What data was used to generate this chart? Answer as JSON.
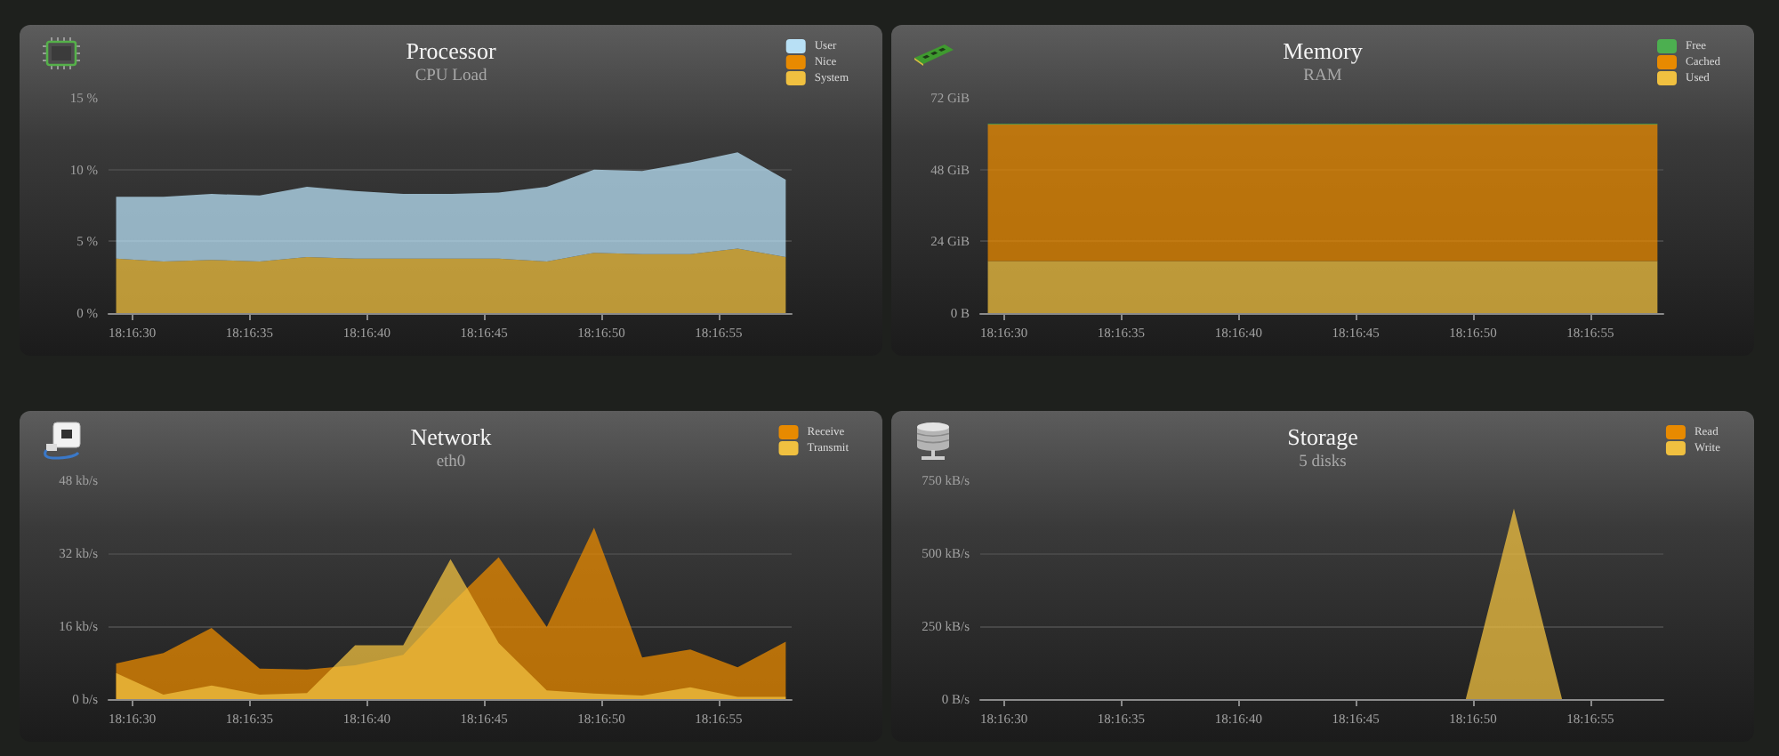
{
  "chart_data": [
    {
      "type": "area",
      "title": "Processor",
      "subtitle": "CPU Load",
      "x": [
        18.27481,
        18.27537,
        18.27594,
        18.27651,
        18.27707,
        18.27764,
        18.27821,
        18.27877,
        18.27934,
        18.27991,
        18.28047,
        18.28104,
        18.28161,
        18.28217,
        18.28274
      ],
      "xlim": [
        18.27472,
        18.28281
      ],
      "xticks": [
        {
          "value": 18.275,
          "label": "18:16:30"
        },
        {
          "value": 18.276389,
          "label": "18:16:35"
        },
        {
          "value": 18.277778,
          "label": "18:16:40"
        },
        {
          "value": 18.279167,
          "label": "18:16:45"
        },
        {
          "value": 18.280556,
          "label": "18:16:50"
        },
        {
          "value": 18.281944,
          "label": "18:16:55"
        }
      ],
      "ylim": [
        0,
        15
      ],
      "yticks": [
        {
          "value": 0,
          "label": "0 %"
        },
        {
          "value": 5,
          "label": "5 %"
        },
        {
          "value": 10,
          "label": "10 %"
        },
        {
          "value": 15,
          "label": "15 %"
        }
      ],
      "stacked": true,
      "grid": "y",
      "legend": "top right",
      "series": [
        {
          "name": "System",
          "color": "#f0c040",
          "values": [
            3.8,
            3.6,
            3.7,
            3.6,
            3.9,
            3.8,
            3.8,
            3.8,
            3.8,
            3.6,
            4.2,
            4.1,
            4.1,
            4.5,
            3.9
          ]
        },
        {
          "name": "Nice",
          "color": "#e88a00",
          "values": [
            null,
            null,
            null,
            null,
            null,
            null,
            null,
            null,
            null,
            null,
            null,
            null,
            null,
            null,
            null
          ]
        },
        {
          "name": "User",
          "color": "#b8e0f5",
          "values": [
            4.3,
            4.5,
            4.6,
            4.6,
            4.9,
            4.7,
            4.5,
            4.5,
            4.6,
            5.2,
            5.8,
            5.8,
            6.4,
            6.7,
            5.4
          ]
        }
      ]
    },
    {
      "type": "area",
      "title": "Memory",
      "subtitle": "RAM",
      "x": [
        18.27481,
        18.27537,
        18.27594,
        18.27651,
        18.27707,
        18.27764,
        18.27821,
        18.27877,
        18.27934,
        18.27991,
        18.28047,
        18.28104,
        18.28161,
        18.28217,
        18.28274
      ],
      "xlim": [
        18.27472,
        18.28281
      ],
      "xticks": [
        {
          "value": 18.275,
          "label": "18:16:30"
        },
        {
          "value": 18.276389,
          "label": "18:16:35"
        },
        {
          "value": 18.277778,
          "label": "18:16:40"
        },
        {
          "value": 18.279167,
          "label": "18:16:45"
        },
        {
          "value": 18.280556,
          "label": "18:16:50"
        },
        {
          "value": 18.281944,
          "label": "18:16:55"
        }
      ],
      "ylim": [
        0,
        72
      ],
      "yticks": [
        {
          "value": 0,
          "label": "0 B"
        },
        {
          "value": 24,
          "label": "24 GiB"
        },
        {
          "value": 48,
          "label": "48 GiB"
        },
        {
          "value": 72,
          "label": "72 GiB"
        }
      ],
      "stacked": true,
      "grid": "y",
      "legend": "top right",
      "series": [
        {
          "name": "Used",
          "color": "#f0c040",
          "values": [
            17.4,
            17.4,
            17.4,
            17.4,
            17.4,
            17.4,
            17.4,
            17.4,
            17.4,
            17.4,
            17.4,
            17.4,
            17.4,
            17.4,
            17.4
          ]
        },
        {
          "name": "Cached",
          "color": "#e88a00",
          "values": [
            45.7,
            45.7,
            45.7,
            45.7,
            45.7,
            45.7,
            45.7,
            45.7,
            45.7,
            45.7,
            45.7,
            45.7,
            45.7,
            45.7,
            45.7
          ]
        },
        {
          "name": "Free",
          "color": "#4caf50",
          "values": [
            0.3,
            0.3,
            0.3,
            0.3,
            0.3,
            0.3,
            0.3,
            0.3,
            0.3,
            0.3,
            0.3,
            0.3,
            0.3,
            0.3,
            0.3
          ]
        }
      ]
    },
    {
      "type": "area",
      "title": "Network",
      "subtitle": "eth0",
      "x": [
        18.27481,
        18.27537,
        18.27594,
        18.27651,
        18.27707,
        18.27764,
        18.27821,
        18.27877,
        18.27934,
        18.27991,
        18.28047,
        18.28104,
        18.28161,
        18.28217,
        18.28274
      ],
      "xlim": [
        18.27472,
        18.28281
      ],
      "xticks": [
        {
          "value": 18.275,
          "label": "18:16:30"
        },
        {
          "value": 18.276389,
          "label": "18:16:35"
        },
        {
          "value": 18.277778,
          "label": "18:16:40"
        },
        {
          "value": 18.279167,
          "label": "18:16:45"
        },
        {
          "value": 18.280556,
          "label": "18:16:50"
        },
        {
          "value": 18.281944,
          "label": "18:16:55"
        }
      ],
      "ylim": [
        0,
        48
      ],
      "yticks": [
        {
          "value": 0,
          "label": "0 b/s"
        },
        {
          "value": 16,
          "label": "16 kb/s"
        },
        {
          "value": 32,
          "label": "32 kb/s"
        },
        {
          "value": 48,
          "label": "48 kb/s"
        }
      ],
      "grid": "y",
      "legend": "top right",
      "series": [
        {
          "name": "Receive",
          "color": "#e88a00",
          "values": [
            7.8,
            10.1,
            15.6,
            6.7,
            6.5,
            7.4,
            9.7,
            20.8,
            31.1,
            15.8,
            37.6,
            9.1,
            10.9,
            7.0,
            12.6
          ]
        },
        {
          "name": "Transmit",
          "color": "#f0c040",
          "values": [
            5.7,
            1.0,
            3.0,
            1.0,
            1.3,
            11.8,
            11.8,
            30.7,
            12.3,
            1.9,
            1.2,
            0.8,
            2.6,
            0.5,
            0.5
          ]
        }
      ]
    },
    {
      "type": "area",
      "title": "Storage",
      "subtitle": "5 disks",
      "x": [
        18.27481,
        18.27537,
        18.27594,
        18.27651,
        18.27707,
        18.27764,
        18.27821,
        18.27877,
        18.27934,
        18.27991,
        18.28047,
        18.28104,
        18.28161,
        18.28217,
        18.28274
      ],
      "xlim": [
        18.27472,
        18.28281
      ],
      "xticks": [
        {
          "value": 18.275,
          "label": "18:16:30"
        },
        {
          "value": 18.276389,
          "label": "18:16:35"
        },
        {
          "value": 18.277778,
          "label": "18:16:40"
        },
        {
          "value": 18.279167,
          "label": "18:16:45"
        },
        {
          "value": 18.280556,
          "label": "18:16:50"
        },
        {
          "value": 18.281944,
          "label": "18:16:55"
        }
      ],
      "ylim": [
        0,
        750
      ],
      "yticks": [
        {
          "value": 0,
          "label": "0 B/s"
        },
        {
          "value": 250,
          "label": "250 kB/s"
        },
        {
          "value": 500,
          "label": "500 kB/s"
        },
        {
          "value": 750,
          "label": "750 kB/s"
        }
      ],
      "grid": "y",
      "legend": "top right",
      "series": [
        {
          "name": "Read",
          "color": "#e88a00",
          "values": [
            null,
            null,
            null,
            null,
            null,
            null,
            null,
            null,
            null,
            null,
            null,
            null,
            null,
            null,
            null
          ]
        },
        {
          "name": "Write",
          "color": "#f0c040",
          "values": [
            0,
            0,
            0,
            0,
            0,
            0,
            0,
            0,
            0,
            0,
            0,
            653,
            0,
            0,
            0
          ]
        }
      ]
    }
  ]
}
